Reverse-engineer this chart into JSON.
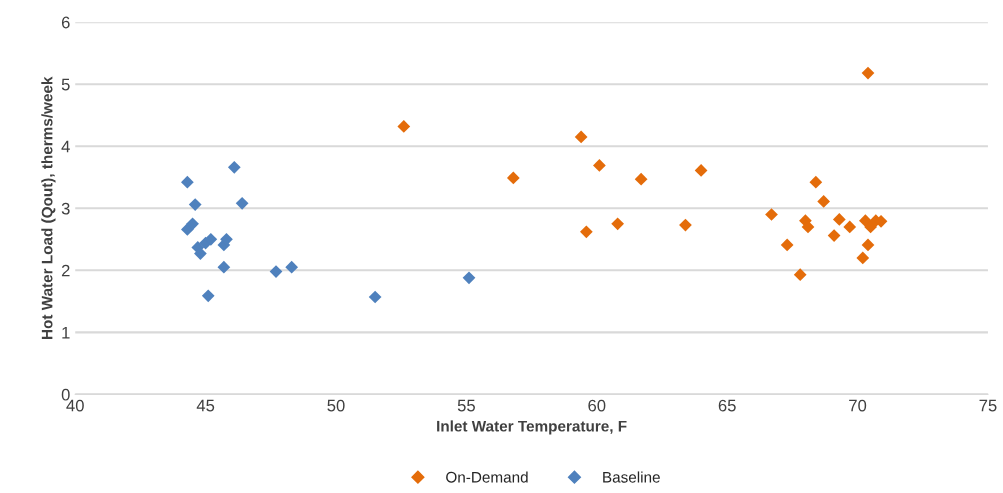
{
  "chart_data": {
    "type": "scatter",
    "xlabel": "Inlet Water Temperature, F",
    "ylabel": "Hot Water Load (Qout), therms/week",
    "xlim": [
      40,
      75
    ],
    "xticks": [
      40,
      45,
      50,
      55,
      60,
      65,
      70,
      75
    ],
    "ylim": [
      0,
      6
    ],
    "yticks": [
      0,
      1,
      2,
      3,
      4,
      5,
      6
    ],
    "grid": "y",
    "legend": "bottom",
    "marker": "diamond",
    "series": [
      {
        "name": "On-Demand",
        "color": "#e46c0a",
        "x": [
          52.6,
          56.8,
          59.4,
          59.6,
          60.1,
          60.8,
          61.7,
          63.4,
          64.0,
          66.7,
          67.3,
          67.8,
          68.0,
          68.1,
          68.4,
          68.7,
          69.1,
          69.3,
          69.7,
          70.2,
          70.3,
          70.4,
          70.4,
          70.5,
          70.7,
          70.9
        ],
        "values": [
          4.32,
          3.49,
          4.15,
          2.62,
          3.69,
          2.75,
          3.47,
          2.73,
          3.61,
          2.9,
          2.41,
          1.93,
          2.8,
          2.7,
          3.42,
          3.11,
          2.56,
          2.82,
          2.7,
          2.2,
          2.8,
          2.41,
          5.18,
          2.7,
          2.8,
          2.79
        ]
      },
      {
        "name": "Baseline",
        "color": "#4f81bd",
        "x": [
          44.3,
          44.6,
          44.3,
          44.5,
          44.7,
          44.8,
          45.0,
          45.2,
          45.1,
          45.7,
          45.7,
          45.8,
          46.1,
          46.4,
          47.7,
          48.3,
          51.5,
          55.1
        ],
        "values": [
          3.42,
          3.06,
          2.66,
          2.75,
          2.37,
          2.27,
          2.44,
          2.5,
          1.59,
          2.05,
          2.41,
          2.5,
          3.66,
          3.08,
          1.98,
          2.05,
          1.57,
          1.88
        ]
      }
    ]
  }
}
